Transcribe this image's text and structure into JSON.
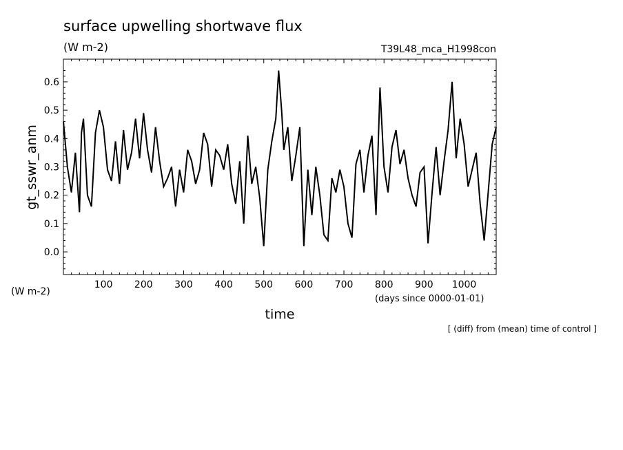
{
  "chart_data": {
    "type": "line",
    "title": "surface upwelling shortwave flux",
    "subtitle": "(W m-2)",
    "run_label": "T39L48_mca_H1998con",
    "ylabel": "gt_sswr_anm",
    "yunit": "(W m-2)",
    "xlabel": "time",
    "xunit": "(days since 0000-01-01)",
    "footnote": "[ (diff) from (mean) time of control ]",
    "xlim": [
      0,
      1080
    ],
    "ylim": [
      -0.08,
      0.68
    ],
    "xticks": [
      100,
      200,
      300,
      400,
      500,
      600,
      700,
      800,
      900,
      1000
    ],
    "yticks": [
      0.0,
      0.1,
      0.2,
      0.3,
      0.4,
      0.5,
      0.6
    ],
    "ytick_labels": [
      "0.0",
      "0.1",
      "0.2",
      "0.3",
      "0.4",
      "0.5",
      "0.6"
    ],
    "grid": false,
    "series": [
      {
        "x": [
          0,
          10,
          20,
          30,
          40,
          45,
          50,
          60,
          70,
          80,
          90,
          100,
          110,
          120,
          130,
          140,
          150,
          160,
          170,
          180,
          190,
          200,
          210,
          220,
          230,
          240,
          250,
          260,
          270,
          280,
          290,
          300,
          310,
          320,
          330,
          340,
          350,
          360,
          370,
          380,
          390,
          400,
          410,
          420,
          430,
          440,
          450,
          460,
          470,
          480,
          490,
          500,
          510,
          520,
          530,
          537,
          545,
          550,
          560,
          570,
          580,
          590,
          600,
          610,
          620,
          630,
          640,
          650,
          660,
          670,
          680,
          690,
          700,
          710,
          720,
          730,
          740,
          750,
          760,
          770,
          780,
          790,
          800,
          810,
          820,
          830,
          840,
          850,
          860,
          870,
          880,
          890,
          900,
          910,
          920,
          930,
          940,
          950,
          960,
          970,
          980,
          990,
          1000,
          1010,
          1020,
          1030,
          1040,
          1050,
          1060,
          1070,
          1080
        ],
        "y": [
          0.46,
          0.3,
          0.21,
          0.35,
          0.14,
          0.42,
          0.47,
          0.2,
          0.16,
          0.42,
          0.5,
          0.44,
          0.29,
          0.25,
          0.39,
          0.24,
          0.43,
          0.29,
          0.35,
          0.47,
          0.33,
          0.49,
          0.36,
          0.28,
          0.44,
          0.32,
          0.23,
          0.26,
          0.3,
          0.16,
          0.29,
          0.21,
          0.36,
          0.32,
          0.24,
          0.29,
          0.42,
          0.38,
          0.23,
          0.36,
          0.34,
          0.29,
          0.38,
          0.24,
          0.17,
          0.32,
          0.1,
          0.41,
          0.24,
          0.3,
          0.19,
          0.02,
          0.29,
          0.39,
          0.47,
          0.64,
          0.49,
          0.36,
          0.44,
          0.25,
          0.34,
          0.44,
          0.02,
          0.29,
          0.13,
          0.3,
          0.2,
          0.06,
          0.04,
          0.26,
          0.21,
          0.29,
          0.23,
          0.1,
          0.05,
          0.31,
          0.36,
          0.21,
          0.34,
          0.41,
          0.13,
          0.58,
          0.3,
          0.21,
          0.37,
          0.43,
          0.31,
          0.36,
          0.26,
          0.2,
          0.16,
          0.28,
          0.3,
          0.03,
          0.21,
          0.37,
          0.2,
          0.32,
          0.43,
          0.6,
          0.33,
          0.47,
          0.38,
          0.23,
          0.29,
          0.35,
          0.17,
          0.04,
          0.21,
          0.38,
          0.44
        ]
      }
    ]
  }
}
